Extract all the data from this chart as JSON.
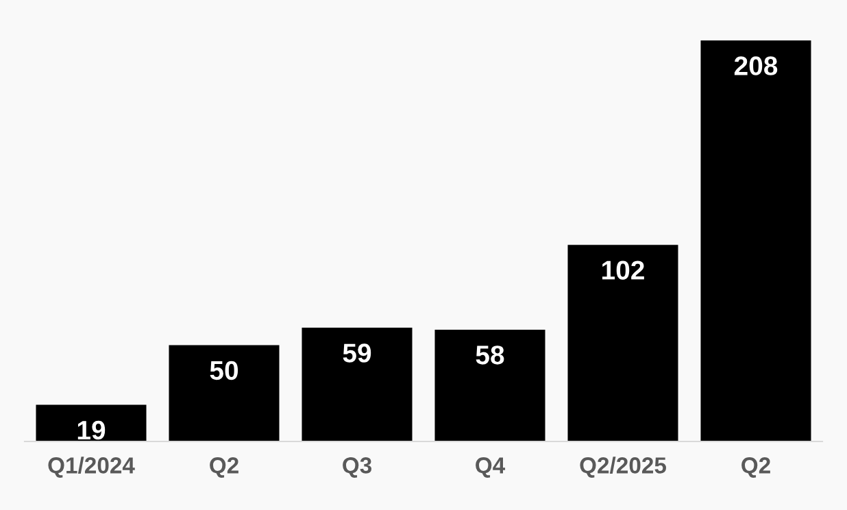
{
  "chart_data": {
    "type": "bar",
    "categories": [
      "Q1/2024",
      "Q2",
      "Q3",
      "Q4",
      "Q2/2025",
      "Q2"
    ],
    "values": [
      19,
      50,
      59,
      58,
      102,
      208
    ],
    "color": "#000000",
    "ylim": [
      0,
      229
    ],
    "data_labels": true,
    "grid": false,
    "legend": false,
    "tick_labels": "x"
  }
}
